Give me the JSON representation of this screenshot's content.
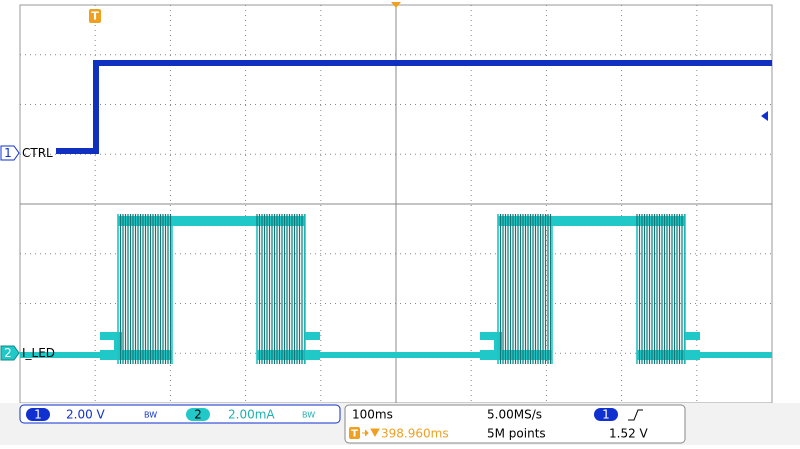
{
  "channels": [
    {
      "number": "1",
      "label": "CTRL",
      "scale": "2.00 V",
      "bandwidth": "BW"
    },
    {
      "number": "2",
      "label": "I_LED",
      "scale": "2.00mA",
      "bandwidth": "BW"
    }
  ],
  "timebase": {
    "scale": "100ms",
    "sample_rate": "5.00MS/s",
    "position": "398.960ms",
    "points": "5M points"
  },
  "trigger": {
    "marker": "T",
    "source": "1",
    "level": "1.52 V"
  }
}
